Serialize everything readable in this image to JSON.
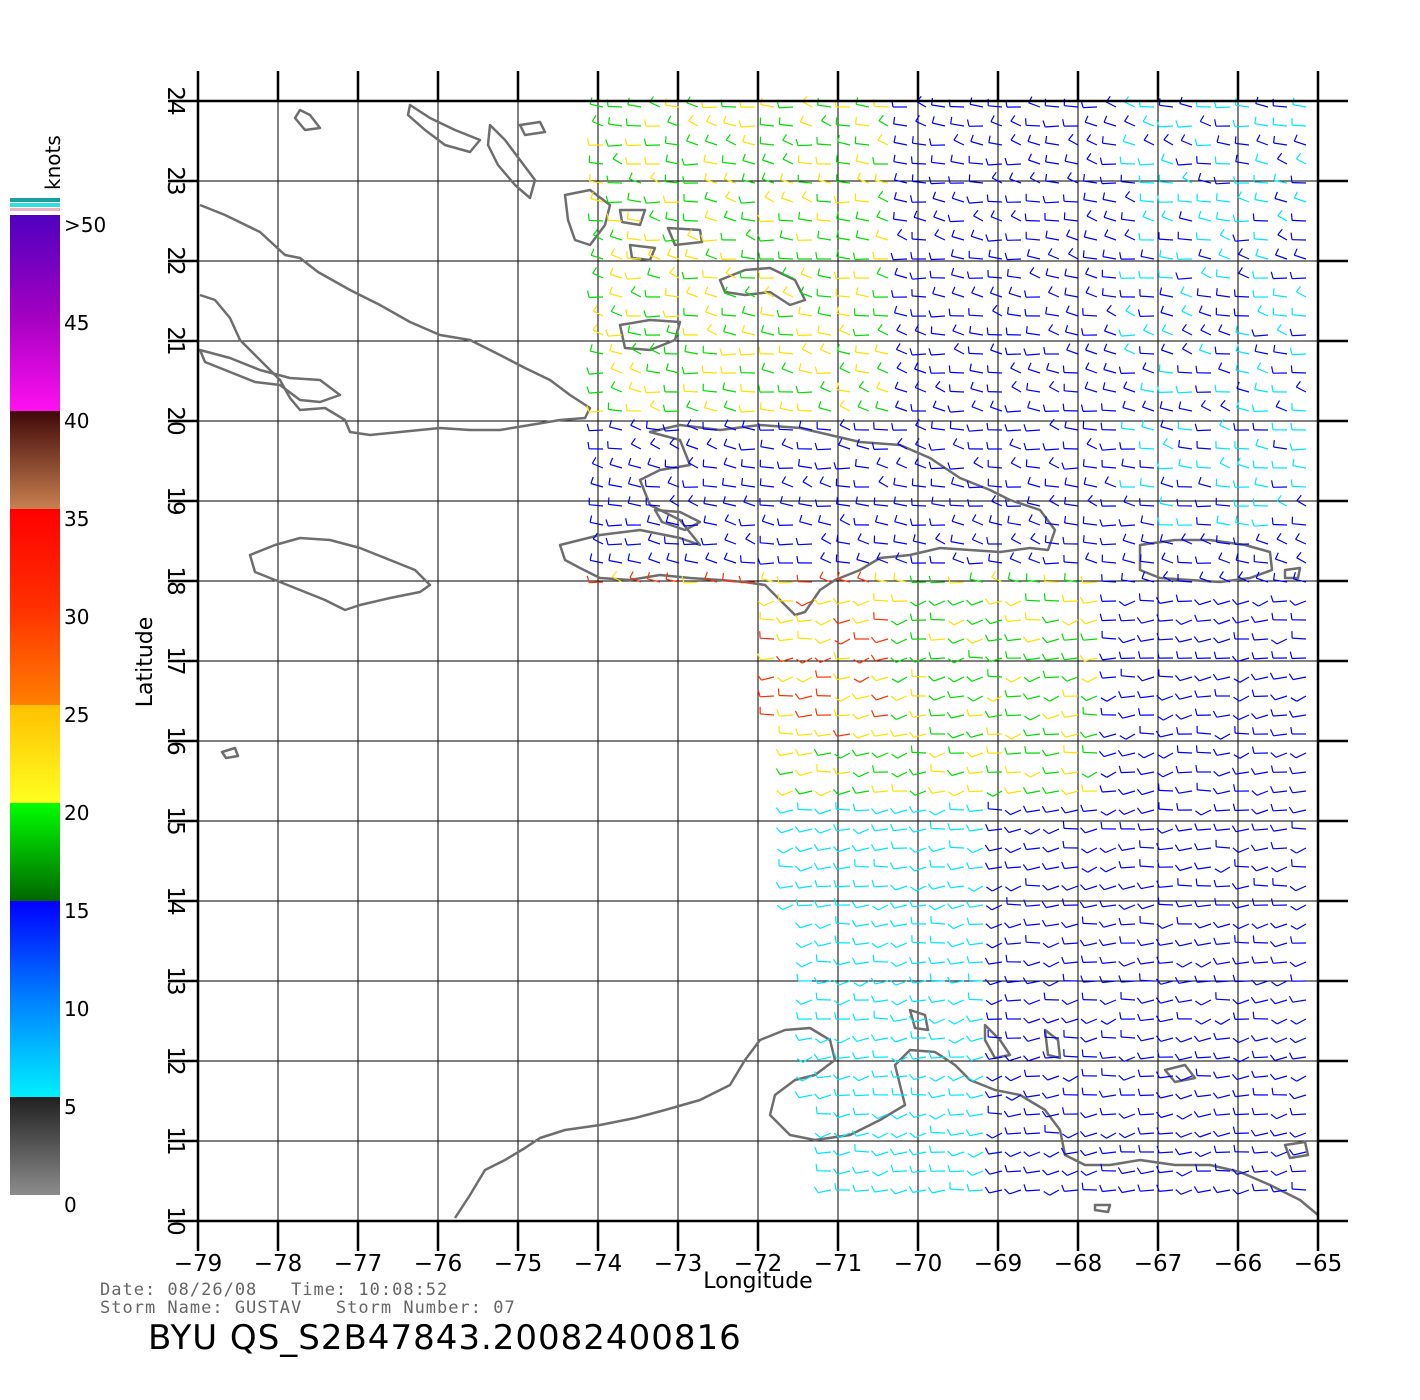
{
  "colorbar": {
    "unit": "knots",
    "labels": [
      ">50",
      "45",
      "40",
      "35",
      "30",
      "25",
      "20",
      "15",
      "10",
      "5",
      "0"
    ]
  },
  "map": {
    "lon_range": [
      -79,
      -65
    ],
    "lat_range": [
      10,
      24
    ],
    "xlabel": "Longitude",
    "ylabel": "Latitude",
    "lon_ticks": [
      "−79",
      "−78",
      "−77",
      "−76",
      "−75",
      "−74",
      "−73",
      "−72",
      "−71",
      "−70",
      "−69",
      "−68",
      "−67",
      "−66",
      "−65"
    ],
    "lat_ticks": [
      "10",
      "11",
      "12",
      "13",
      "14",
      "15",
      "16",
      "17",
      "18",
      "19",
      "20",
      "21",
      "22",
      "23",
      "24"
    ]
  },
  "footer": {
    "date_line": "Date: 08/26/08   Time: 10:08:52",
    "storm_line": "Storm Name: GUSTAV   Storm Number: 07",
    "title": "BYU QS_S2B47843.20082400816"
  },
  "colors": {
    "coast": "#6e6e6e",
    "grid": "#000000",
    "speed_scale": [
      "#7a7a7a",
      "#00e5ff",
      "#0000ff",
      "#00dd00",
      "#ffe000",
      "#ff3000",
      "#8a4a2a",
      "#ff00ff",
      "#6a00cc"
    ]
  }
}
